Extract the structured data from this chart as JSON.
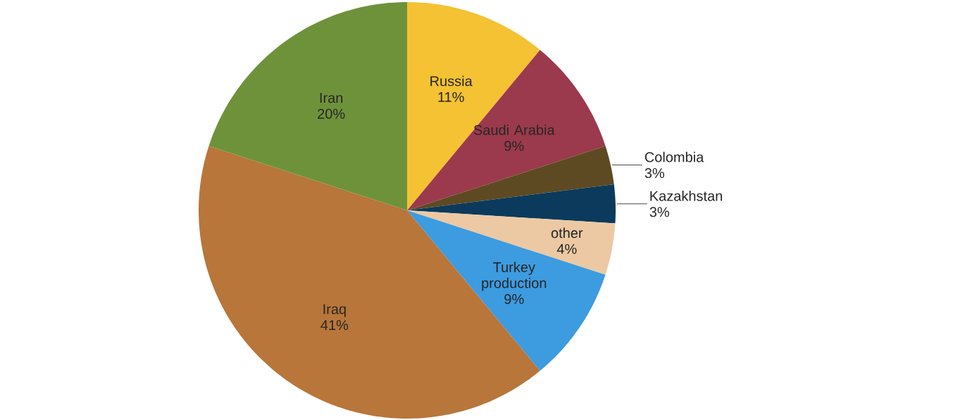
{
  "chart_data": {
    "type": "pie",
    "categories": [
      "Russia",
      "Saudi Arabia",
      "Colombia",
      "Kazakhstan",
      "other",
      "Turkey production",
      "Iraq",
      "Iran"
    ],
    "values": [
      11,
      9,
      3,
      3,
      4,
      9,
      41,
      20
    ],
    "value_labels": [
      "11%",
      "9%",
      "3%",
      "3%",
      "4%",
      "9%",
      "41%",
      "20%"
    ],
    "colors": [
      "#f4c232",
      "#9b3a4c",
      "#5e4a22",
      "#0b3a5c",
      "#ecc9a3",
      "#3d9be0",
      "#b8763a",
      "#6e923a"
    ]
  }
}
